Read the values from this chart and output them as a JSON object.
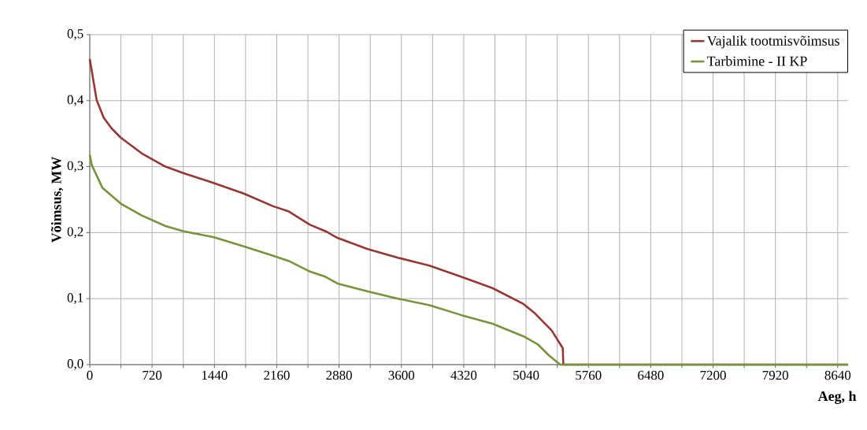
{
  "chart_data": {
    "type": "line",
    "xlabel": "Aeg, h",
    "ylabel": "Võimsus, MW",
    "xlim": [
      0,
      8760
    ],
    "ylim": [
      0,
      0.5
    ],
    "xticks": [
      0,
      {
        "value": 360,
        "label": null
      },
      720,
      {
        "value": 1080,
        "label": null
      },
      1440,
      {
        "value": 1800,
        "label": null
      },
      2160,
      {
        "value": 2520,
        "label": null
      },
      2880,
      {
        "value": 3240,
        "label": null
      },
      3600,
      {
        "value": 3960,
        "label": null
      },
      4320,
      {
        "value": 4680,
        "label": null
      },
      5040,
      {
        "value": 5400,
        "label": null
      },
      5760,
      {
        "value": 6120,
        "label": null
      },
      6480,
      {
        "value": 6840,
        "label": null
      },
      7200,
      {
        "value": 7560,
        "label": null
      },
      7920,
      {
        "value": 8280,
        "label": null
      },
      8640
    ],
    "yticks": [
      {
        "value": 0,
        "label": "0,0"
      },
      {
        "value": 0.1,
        "label": "0,1"
      },
      {
        "value": 0.2,
        "label": "0,2"
      },
      {
        "value": 0.3,
        "label": "0,3"
      },
      {
        "value": 0.4,
        "label": "0,4"
      },
      {
        "value": 0.5,
        "label": "0,5"
      }
    ],
    "grid": true,
    "legend": "top right",
    "series": [
      {
        "name": "Vajalik tootmisvõimsus",
        "color": "#953735",
        "x": [
          0,
          79,
          161,
          252,
          358,
          601,
          874,
          1086,
          1435,
          1784,
          2118,
          2300,
          2543,
          2725,
          2861,
          3210,
          3559,
          3923,
          4293,
          4651,
          5009,
          5139,
          5334,
          5464,
          5470,
          8760
        ],
        "values": [
          0.463,
          0.401,
          0.374,
          0.358,
          0.344,
          0.32,
          0.3,
          0.29,
          0.275,
          0.259,
          0.24,
          0.232,
          0.212,
          0.202,
          0.192,
          0.175,
          0.162,
          0.15,
          0.133,
          0.116,
          0.092,
          0.078,
          0.052,
          0.025,
          0,
          0
        ]
      },
      {
        "name": "Tarbimine - II KP",
        "color": "#77933c",
        "x": [
          0,
          24,
          146,
          358,
          601,
          874,
          1086,
          1435,
          1784,
          2118,
          2300,
          2543,
          2725,
          2861,
          3210,
          3559,
          3923,
          4293,
          4651,
          5009,
          5173,
          5304,
          5434,
          8760
        ],
        "values": [
          0.318,
          0.302,
          0.268,
          0.244,
          0.226,
          0.21,
          0.202,
          0.193,
          0.179,
          0.165,
          0.157,
          0.141,
          0.133,
          0.123,
          0.111,
          0.1,
          0.09,
          0.075,
          0.062,
          0.043,
          0.031,
          0.014,
          0,
          0
        ]
      }
    ]
  }
}
